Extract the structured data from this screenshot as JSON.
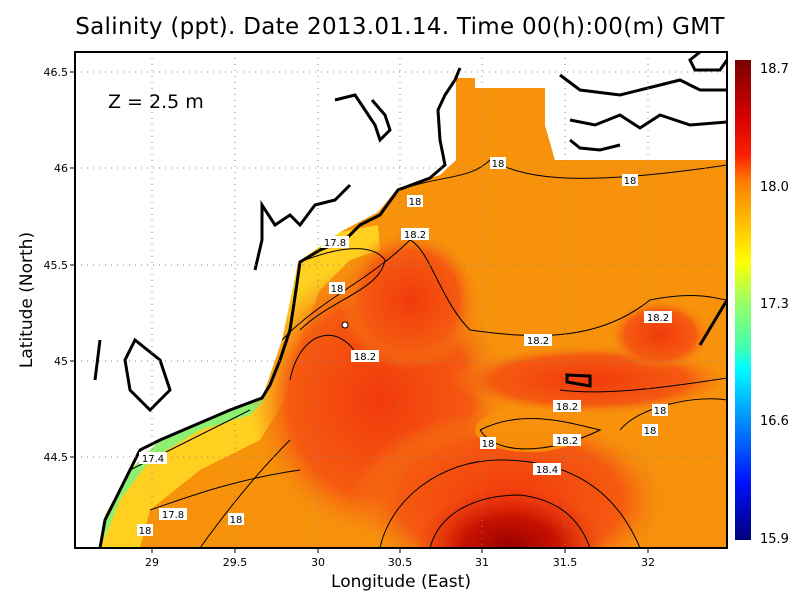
{
  "title": "Salinity (ppt). Date 2013.01.14. Time 00(h):00(m) GMT",
  "depth_label": "Z = 2.5 m",
  "x_axis": {
    "label": "Longitude (East)",
    "ticks": [
      "29",
      "29.5",
      "30",
      "30.5",
      "31",
      "31.5",
      "32"
    ]
  },
  "y_axis": {
    "label": "Latitude (North)",
    "ticks": [
      "46.5",
      "46",
      "45.5",
      "45",
      "44.5"
    ]
  },
  "colorbar": {
    "ticks": [
      "18.7",
      "18.0",
      "17.3",
      "16.6",
      "15.9"
    ],
    "colors": [
      "#7a0000",
      "#ff0000",
      "#ff8c00",
      "#ffff00",
      "#80ff80",
      "#00ffff",
      "#0080ff",
      "#0000ff",
      "#00007a"
    ]
  },
  "contour_labels": [
    "18",
    "18",
    "18",
    "18.2",
    "17.8",
    "18",
    "18.2",
    "18.2",
    "18.2",
    "18.2",
    "18",
    "18",
    "18.2",
    "18",
    "17.4",
    "18.4",
    "17.8",
    "18",
    "18"
  ],
  "colors": {
    "land": "#ffffff",
    "coast": "#000000",
    "grid": "#888888"
  }
}
